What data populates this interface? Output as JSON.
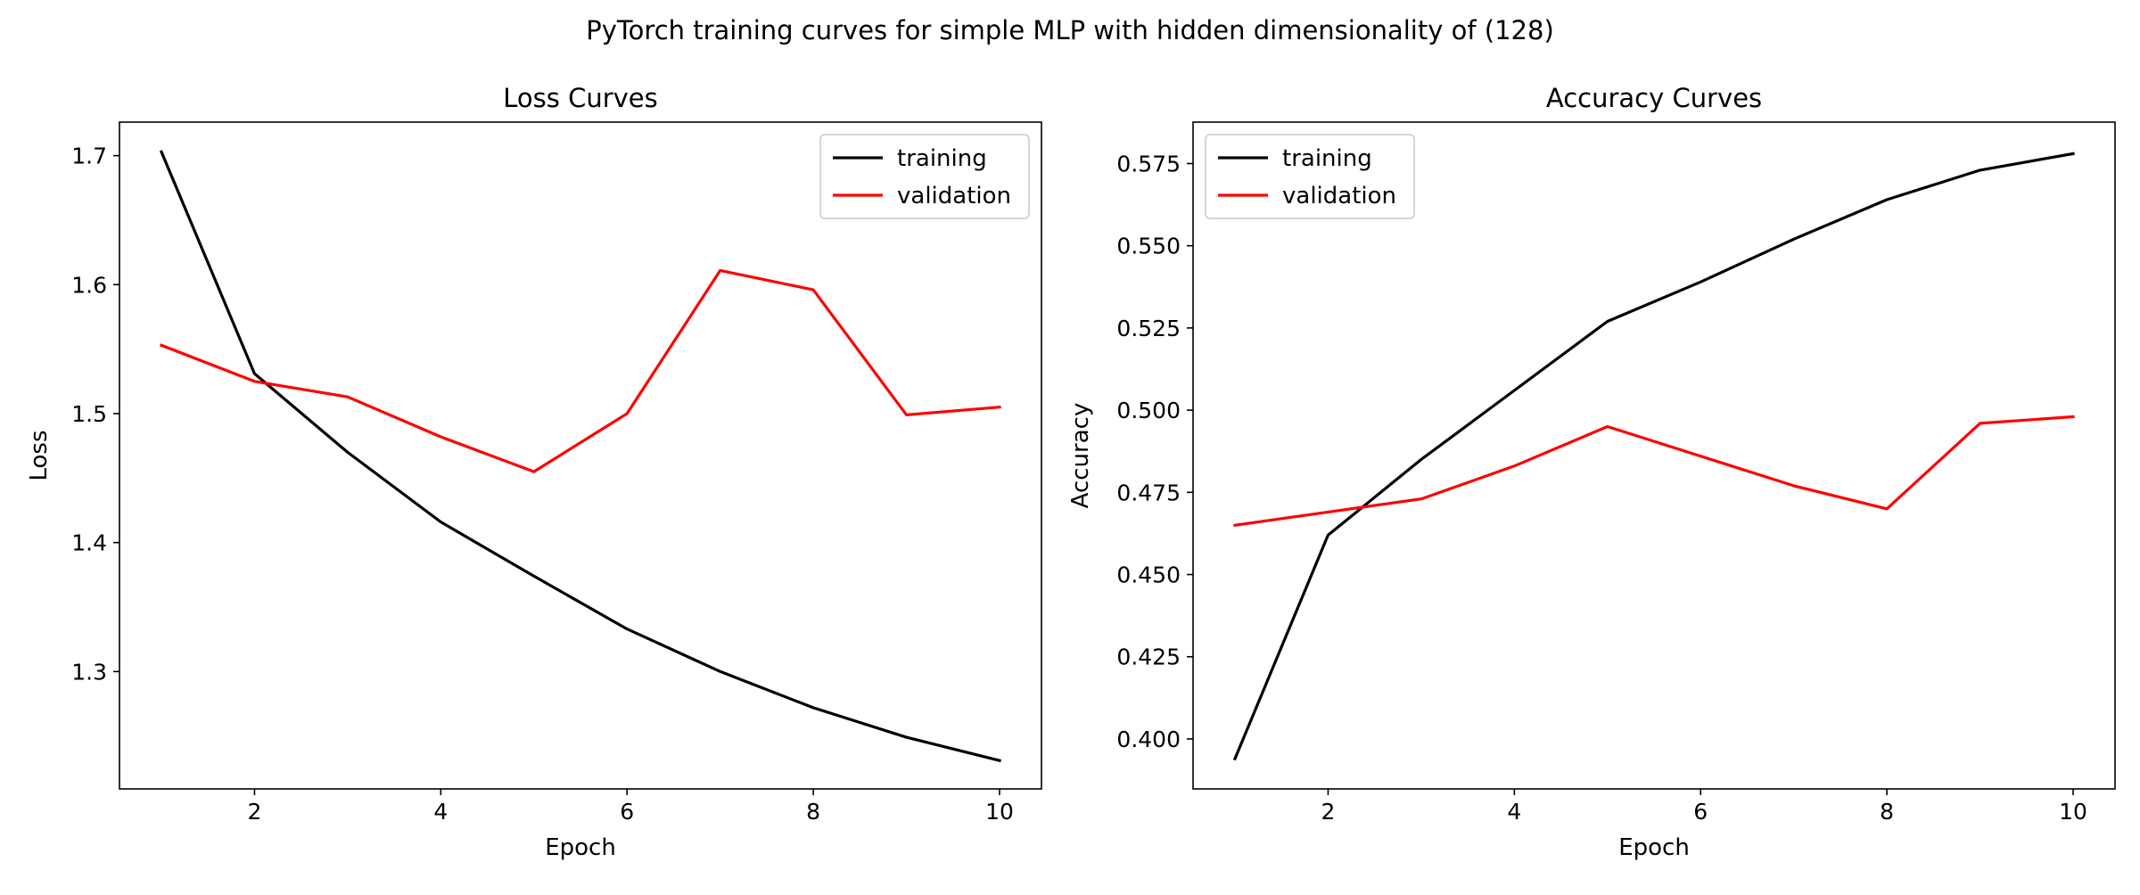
{
  "figure": {
    "suptitle": "PyTorch training curves for simple MLP with hidden dimensionality of (128)"
  },
  "colors": {
    "training": "#000000",
    "validation": "#ff0000",
    "axes": "#000000",
    "background": "#ffffff"
  },
  "chart_data": [
    {
      "type": "line",
      "title": "Loss Curves",
      "xlabel": "Epoch",
      "ylabel": "Loss",
      "x": [
        1,
        2,
        3,
        4,
        5,
        6,
        7,
        8,
        9,
        10
      ],
      "xlim": [
        0.55,
        10.45
      ],
      "ylim": [
        1.209,
        1.726
      ],
      "xticks": [
        2,
        4,
        6,
        8,
        10
      ],
      "xtick_labels": [
        "2",
        "4",
        "6",
        "8",
        "10"
      ],
      "yticks": [
        1.3,
        1.4,
        1.5,
        1.6,
        1.7
      ],
      "ytick_labels": [
        "1.3",
        "1.4",
        "1.5",
        "1.6",
        "1.7"
      ],
      "grid": false,
      "legend": "upper right",
      "series": [
        {
          "name": "training",
          "color": "#000000",
          "values": [
            1.703,
            1.531,
            1.47,
            1.416,
            1.374,
            1.333,
            1.3,
            1.272,
            1.249,
            1.231
          ]
        },
        {
          "name": "validation",
          "color": "#ff0000",
          "values": [
            1.553,
            1.525,
            1.513,
            1.482,
            1.455,
            1.5,
            1.611,
            1.596,
            1.499,
            1.505
          ]
        }
      ]
    },
    {
      "type": "line",
      "title": "Accuracy Curves",
      "xlabel": "Epoch",
      "ylabel": "Accuracy",
      "x": [
        1,
        2,
        3,
        4,
        5,
        6,
        7,
        8,
        9,
        10
      ],
      "xlim": [
        0.55,
        10.45
      ],
      "ylim": [
        0.3848,
        0.5876
      ],
      "xticks": [
        2,
        4,
        6,
        8,
        10
      ],
      "xtick_labels": [
        "2",
        "4",
        "6",
        "8",
        "10"
      ],
      "yticks": [
        0.4,
        0.425,
        0.45,
        0.475,
        0.5,
        0.525,
        0.55,
        0.575
      ],
      "ytick_labels": [
        "0.400",
        "0.425",
        "0.450",
        "0.475",
        "0.500",
        "0.525",
        "0.550",
        "0.575"
      ],
      "grid": false,
      "legend": "upper left",
      "series": [
        {
          "name": "training",
          "color": "#000000",
          "values": [
            0.394,
            0.462,
            0.485,
            0.506,
            0.527,
            0.539,
            0.552,
            0.564,
            0.573,
            0.578
          ]
        },
        {
          "name": "validation",
          "color": "#ff0000",
          "values": [
            0.465,
            0.469,
            0.473,
            0.483,
            0.495,
            0.486,
            0.477,
            0.47,
            0.496,
            0.498
          ]
        }
      ]
    }
  ]
}
